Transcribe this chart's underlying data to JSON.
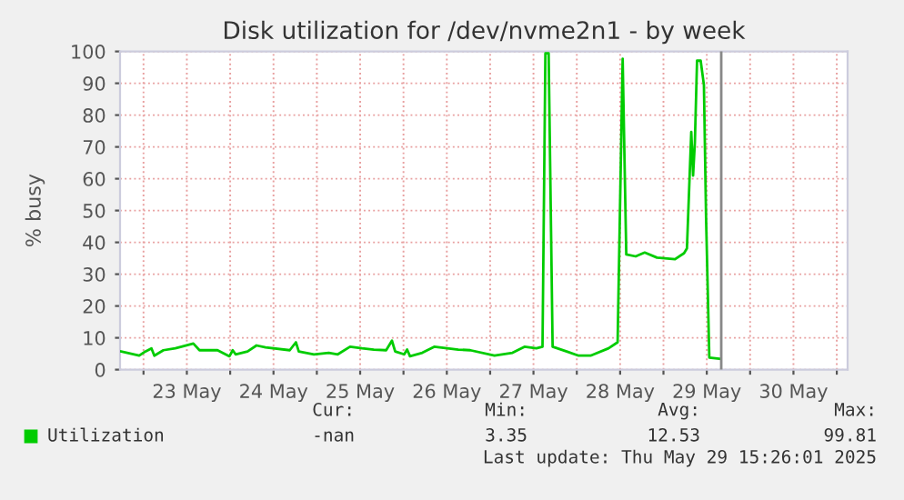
{
  "chart_data": {
    "type": "line",
    "title": "Disk utilization for /dev/nvme2n1 - by week",
    "ylabel": "% busy",
    "x": [
      "2025-05-22T17:48",
      "2025-05-22T22:48",
      "2025-05-23T00:30",
      "2025-05-23T02:12",
      "2025-05-23T03:00",
      "2025-05-23T05:30",
      "2025-05-23T08:48",
      "2025-05-23T10:30",
      "2025-05-23T13:48",
      "2025-05-23T15:30",
      "2025-05-23T20:30",
      "2025-05-23T23:48",
      "2025-05-24T00:42",
      "2025-05-24T01:30",
      "2025-05-24T04:48",
      "2025-05-24T07:18",
      "2025-05-24T09:48",
      "2025-05-24T16:30",
      "2025-05-24T18:12",
      "2025-05-24T19:00",
      "2025-05-24T23:12",
      "2025-05-25T03:18",
      "2025-05-25T05:48",
      "2025-05-25T09:12",
      "2025-05-25T12:30",
      "2025-05-25T15:48",
      "2025-05-25T19:12",
      "2025-05-25T20:48",
      "2025-05-25T21:42",
      "2025-05-26T00:12",
      "2025-05-26T01:00",
      "2025-05-26T01:48",
      "2025-05-26T05:12",
      "2025-05-26T08:30",
      "2025-05-26T15:12",
      "2025-05-26T18:30",
      "2025-05-27T01:12",
      "2025-05-27T06:12",
      "2025-05-27T09:30",
      "2025-05-27T12:48",
      "2025-05-27T14:30",
      "2025-05-27T15:18",
      "2025-05-27T16:12",
      "2025-05-27T17:18",
      "2025-05-27T21:12",
      "2025-05-28T00:30",
      "2025-05-28T03:48",
      "2025-05-28T08:48",
      "2025-05-28T11:18",
      "2025-05-28T12:42",
      "2025-05-28T13:42",
      "2025-05-28T16:18",
      "2025-05-28T18:48",
      "2025-05-28T22:12",
      "2025-05-29T03:12",
      "2025-05-29T05:42",
      "2025-05-29T06:30",
      "2025-05-29T07:42",
      "2025-05-29T08:12",
      "2025-05-29T08:42",
      "2025-05-29T09:18",
      "2025-05-29T10:18",
      "2025-05-29T11:12",
      "2025-05-29T11:48",
      "2025-05-29T12:42",
      "2025-05-29T15:42"
    ],
    "series": [
      {
        "name": "Utilization",
        "color": "#00cc00",
        "values": [
          5.7,
          4.4,
          5.7,
          6.7,
          4.4,
          6.1,
          6.7,
          7.2,
          8.2,
          6.1,
          6.1,
          4.2,
          6.1,
          4.8,
          5.7,
          7.6,
          7.0,
          6.1,
          8.6,
          5.7,
          4.8,
          5.3,
          4.8,
          7.2,
          6.7,
          6.3,
          6.1,
          9.1,
          5.7,
          4.8,
          6.3,
          4.2,
          5.3,
          7.2,
          6.3,
          6.1,
          4.4,
          5.3,
          7.2,
          6.7,
          7.2,
          99.4,
          99.4,
          7.2,
          5.7,
          4.4,
          4.4,
          6.7,
          8.6,
          97.7,
          36.2,
          35.6,
          36.8,
          35.2,
          34.7,
          36.6,
          38.1,
          74.7,
          61.0,
          71.4,
          97.1,
          97.1,
          89.5,
          47.6,
          3.8,
          3.4
        ]
      }
    ],
    "xlim": [
      "2025-05-22T17:30",
      "2025-05-31T03:00"
    ],
    "xticks": [
      {
        "value": "2025-05-23T00:00",
        "label": null
      },
      {
        "value": "2025-05-23T12:00",
        "label": "23 May"
      },
      {
        "value": "2025-05-24T00:00",
        "label": null
      },
      {
        "value": "2025-05-24T12:00",
        "label": "24 May"
      },
      {
        "value": "2025-05-25T00:00",
        "label": null
      },
      {
        "value": "2025-05-25T12:00",
        "label": "25 May"
      },
      {
        "value": "2025-05-26T00:00",
        "label": null
      },
      {
        "value": "2025-05-26T12:00",
        "label": "26 May"
      },
      {
        "value": "2025-05-27T00:00",
        "label": null
      },
      {
        "value": "2025-05-27T12:00",
        "label": "27 May"
      },
      {
        "value": "2025-05-28T00:00",
        "label": null
      },
      {
        "value": "2025-05-28T12:00",
        "label": "28 May"
      },
      {
        "value": "2025-05-29T00:00",
        "label": null
      },
      {
        "value": "2025-05-29T12:00",
        "label": "29 May"
      },
      {
        "value": "2025-05-30T00:00",
        "label": null
      },
      {
        "value": "2025-05-30T12:00",
        "label": "30 May"
      },
      {
        "value": "2025-05-31T00:00",
        "label": null
      }
    ],
    "ylim": [
      0,
      100
    ],
    "yticks": [
      0,
      10,
      20,
      30,
      40,
      50,
      60,
      70,
      80,
      90,
      100
    ],
    "ref_lines": [
      {
        "axis": "x",
        "value": "2025-05-29T16:00",
        "color": "#888888"
      }
    ],
    "grid": true,
    "legend": "bottom left",
    "marker": "none",
    "line_style": "solid",
    "annotations": [
      "Cur:",
      "-nan",
      "Min:",
      "3.35",
      "Avg:",
      "12.53",
      "Max:",
      "99.81",
      "Last update: Thu May 29 15:26:01 2025"
    ]
  }
}
